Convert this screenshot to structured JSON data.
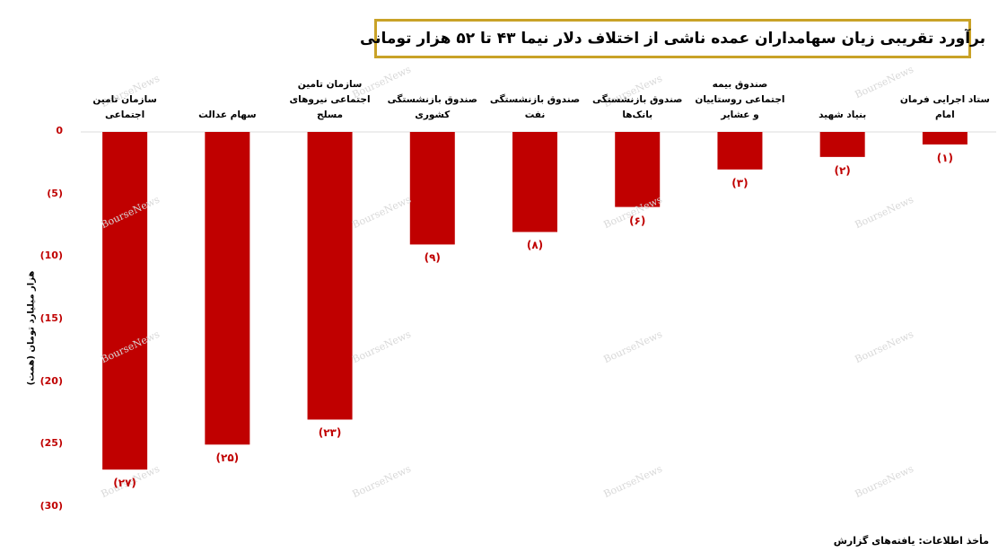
{
  "chart_data": {
    "type": "bar",
    "title": "برآورد تقریبی زیان سهامداران عمده ناشی از اختلاف دلار نیما ۴۳ تا ۵۲ هزار تومانی",
    "y_label": "هزار میلیارد تومان (همت)",
    "source": "مأخذ اطلاعات: یافته‌های گزارش",
    "watermark": "BourseNews",
    "categories": [
      "سازمان تامین اجتماعی",
      "سهام عدالت",
      "سازمان تامین اجتماعی نیروهای مسلح",
      "صندوق بازنشستگی کشوری",
      "صندوق بازنشستگی نفت",
      "صندوق بازنشستگی بانک‌ها",
      "صندوق بیمه اجتماعی روستاییان و عشایر",
      "بنیاد شهید",
      "ستاد اجرایی فرمان امام"
    ],
    "values": [
      -27,
      -25,
      -23,
      -9,
      -8,
      -6,
      -3,
      -2,
      -1
    ],
    "value_labels": [
      "(۲۷)",
      "(۲۵)",
      "(۲۳)",
      "(۹)",
      "(۸)",
      "(۶)",
      "(۳)",
      "(۲)",
      "(۱)"
    ],
    "color": "#c00000",
    "ylim": [
      -30,
      0
    ],
    "yticks": [
      0,
      {
        "value": -5,
        "label": "(5)"
      },
      {
        "value": -10,
        "label": "(10)"
      },
      {
        "value": -15,
        "label": "(15)"
      },
      {
        "value": -20,
        "label": "(20)"
      },
      {
        "value": -25,
        "label": "(25)"
      },
      {
        "value": -30,
        "label": "(30)"
      }
    ],
    "grid": false
  }
}
